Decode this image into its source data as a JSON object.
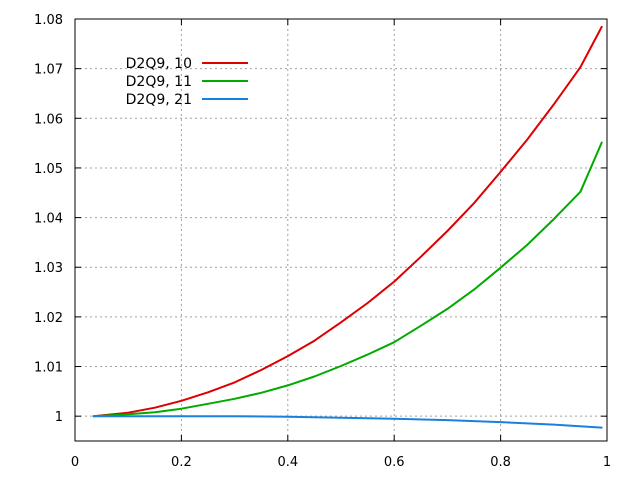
{
  "chart_data": {
    "type": "line",
    "title": "",
    "xlabel": "",
    "ylabel": "",
    "xlim": [
      0,
      1
    ],
    "ylim": [
      0.995,
      1.08
    ],
    "xticks": [
      0,
      0.2,
      0.4,
      0.6,
      0.8,
      1
    ],
    "xtick_labels": [
      "0",
      "0.2",
      "0.4",
      "0.6",
      "0.8",
      "1"
    ],
    "yticks": [
      1,
      1.01,
      1.02,
      1.03,
      1.04,
      1.05,
      1.06,
      1.07,
      1.08
    ],
    "ytick_labels": [
      "1",
      "1.01",
      "1.02",
      "1.03",
      "1.04",
      "1.05",
      "1.06",
      "1.07",
      "1.08"
    ],
    "grid": true,
    "legend_position": "top-left",
    "series": [
      {
        "name": "D2Q9, 10",
        "color": "#dd0000",
        "x": [
          0.035,
          0.1,
          0.15,
          0.2,
          0.25,
          0.3,
          0.35,
          0.4,
          0.45,
          0.5,
          0.55,
          0.6,
          0.65,
          0.7,
          0.75,
          0.8,
          0.85,
          0.9,
          0.95,
          0.99
        ],
        "y": [
          1.0,
          1.0007,
          1.0017,
          1.0031,
          1.0048,
          1.0068,
          1.0093,
          1.0121,
          1.0152,
          1.0189,
          1.0228,
          1.0271,
          1.0321,
          1.0373,
          1.0429,
          1.0492,
          1.0557,
          1.0628,
          1.0703,
          1.0784
        ]
      },
      {
        "name": "D2Q9, 11",
        "color": "#00aa00",
        "x": [
          0.035,
          0.1,
          0.15,
          0.2,
          0.25,
          0.3,
          0.35,
          0.4,
          0.45,
          0.5,
          0.55,
          0.6,
          0.65,
          0.7,
          0.75,
          0.8,
          0.85,
          0.9,
          0.95,
          0.99
        ],
        "y": [
          1.0,
          1.0004,
          1.0008,
          1.0015,
          1.0025,
          1.0035,
          1.0047,
          1.0062,
          1.008,
          1.0101,
          1.0124,
          1.0149,
          1.0182,
          1.0216,
          1.0255,
          1.0299,
          1.0345,
          1.0397,
          1.0452,
          1.0551
        ]
      },
      {
        "name": "D2Q9, 21",
        "color": "#1a80e0",
        "x": [
          0.035,
          0.1,
          0.2,
          0.3,
          0.4,
          0.5,
          0.6,
          0.7,
          0.8,
          0.9,
          0.99
        ],
        "y": [
          1.0,
          1.0,
          1.0,
          1.0,
          0.9999,
          0.9997,
          0.9995,
          0.9992,
          0.9988,
          0.9983,
          0.9977
        ]
      }
    ]
  }
}
